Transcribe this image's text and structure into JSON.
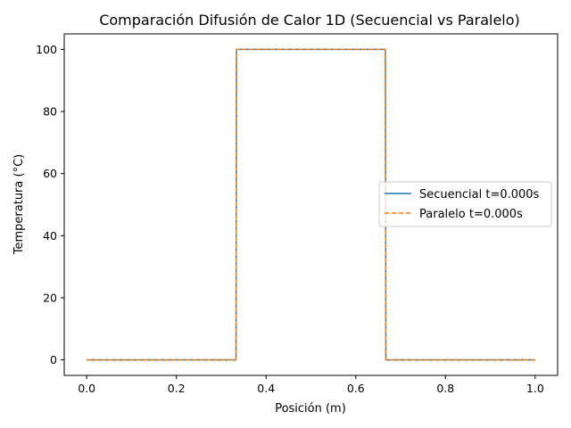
{
  "chart_data": {
    "type": "line",
    "title": "Comparación Difusión de Calor 1D (Secuencial vs Paralelo)",
    "xlabel": "Posición (m)",
    "ylabel": "Temperatura (°C)",
    "xlim": [
      -0.05,
      1.05
    ],
    "ylim": [
      -5,
      105
    ],
    "xticks": [
      0.0,
      0.2,
      0.4,
      0.6,
      0.8,
      1.0
    ],
    "xtick_labels": [
      "0.0",
      "0.2",
      "0.4",
      "0.6",
      "0.8",
      "1.0"
    ],
    "yticks": [
      0,
      20,
      40,
      60,
      80,
      100
    ],
    "ytick_labels": [
      "0",
      "20",
      "40",
      "60",
      "80",
      "100"
    ],
    "grid": false,
    "legend_position": "center-right",
    "series": [
      {
        "name": "Secuencial t=0.000s",
        "color": "#1f77b4",
        "style": "solid",
        "x": [
          0.0,
          0.333,
          0.334,
          0.666,
          0.667,
          1.0
        ],
        "y": [
          0,
          0,
          100,
          100,
          0,
          0
        ]
      },
      {
        "name": "Paralelo t=0.000s",
        "color": "#ff7f0e",
        "style": "dashed",
        "x": [
          0.0,
          0.333,
          0.334,
          0.666,
          0.667,
          1.0
        ],
        "y": [
          0,
          0,
          100,
          100,
          0,
          0
        ]
      }
    ]
  }
}
